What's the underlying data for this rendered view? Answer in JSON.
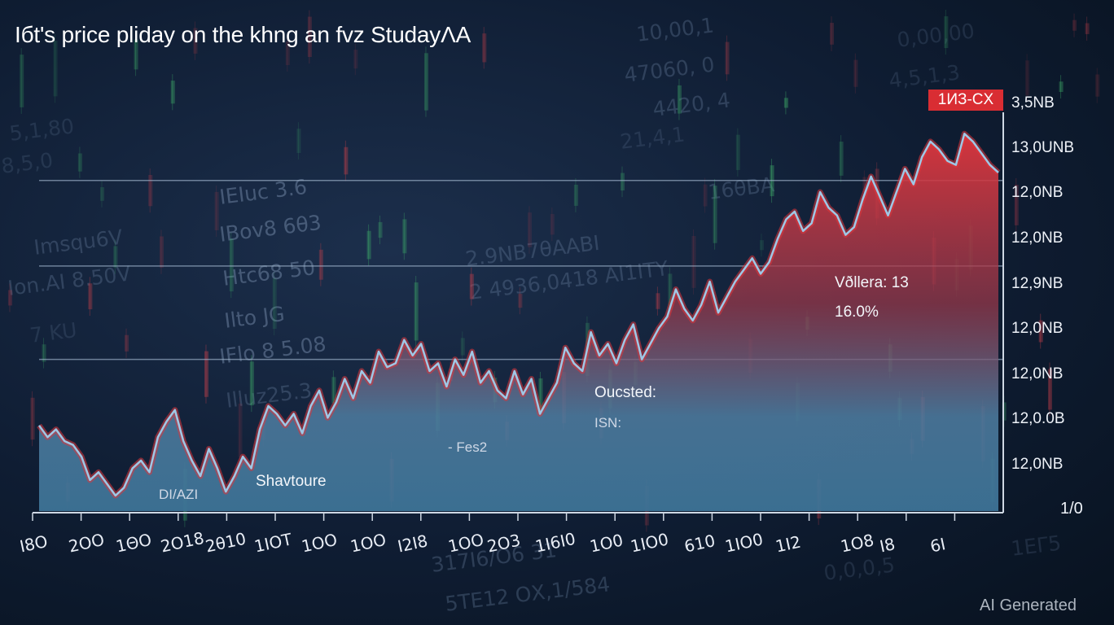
{
  "title": "Iбt's price pliday on the khng an fvz StudayΛA",
  "badge": "1ИЗ-CX",
  "watermark": "AI Generated",
  "background_text": [
    "ΙΕΙuc 3.6",
    "ΙΒov8 6θ3",
    "Ηtc68 50",
    "Ιlto JG",
    "ΙFlo 8 5.08",
    "Ιlluz25.3",
    "10,00,1",
    "47060, 0",
    "4420, 4",
    "16θBA",
    "21,4,1",
    "2.9ΝΒ7θΑΑΒΙ",
    "2 4936,0418 ΑΙ1ΙΤΥ",
    "5,1,80",
    "Ιon.ΑΙ 8.50V",
    "Ιmsqu6V",
    "7 KU",
    "317Ι6/Ο6 31",
    "5ΤΕ12 ΟΧ,1/584",
    "1ΕΓ5",
    "0,00,00",
    "4,5,1,3",
    "8,5,0",
    "0,0,0,5"
  ],
  "y_labels": [
    "3,5ΝΒ",
    "13,0UΝΒ",
    "12,0ΝΒ",
    "12,0ΝΒ",
    "12,9ΝΒ",
    "12,0ΝΒ",
    "12,0ΝΒ",
    "12,0.0Β",
    "12,0ΝΒ"
  ],
  "origin_label": "1/0",
  "x_labels": [
    "Ι8Ο",
    "2ΟΟ",
    "1ΘΟ",
    "2Ο18",
    "2θ10",
    "1ΙΟΤ",
    "1ΟΟ",
    "1ΟΟ",
    "Ι2Ι8",
    "1ΟΟ",
    "2Ο3",
    "1Ι6Ι0",
    "1Ο0",
    "1ΙΟ0",
    "610",
    "1ΙΟ0",
    "1Ι2",
    "1Ο8",
    "Ι8",
    "6Ι"
  ],
  "annotations": {
    "dl": "DΙ/ΑΖΙ",
    "shavtoure": "Shavtoure",
    "fes": "- Fes2",
    "oucsted": "Oucsted:",
    "isn": "ISΝ:",
    "vellera": "Vðllera: 13",
    "pct": "16.0%"
  },
  "colors": {
    "line": "#9fc8e6",
    "area_red": "#e0363d",
    "area_blue": "#5b8fb3",
    "badge": "#d92d33"
  },
  "chart_data": {
    "type": "area",
    "title": "Iбt's price pliday on the khng an fvz StudayΛA",
    "xlabel": "",
    "ylabel": "",
    "ylim": [
      0,
      100
    ],
    "grid": true,
    "gridlines": [
      85,
      63,
      39
    ],
    "values": [
      22,
      19,
      21,
      18,
      17,
      14,
      8,
      10,
      7,
      4,
      6,
      11,
      13,
      10,
      19,
      23,
      26,
      18,
      13,
      9,
      16,
      11,
      5,
      9,
      14,
      11,
      21,
      27,
      25,
      22,
      25,
      20,
      27,
      31,
      24,
      28,
      34,
      29,
      36,
      33,
      41,
      37,
      38,
      44,
      40,
      43,
      36,
      38,
      32,
      39,
      35,
      41,
      33,
      36,
      31,
      29,
      36,
      30,
      34,
      25,
      29,
      33,
      42,
      38,
      36,
      46,
      40,
      43,
      38,
      44,
      48,
      39,
      43,
      47,
      50,
      57,
      52,
      49,
      53,
      59,
      51,
      55,
      59,
      62,
      65,
      61,
      64,
      70,
      75,
      77,
      72,
      74,
      82,
      78,
      76,
      71,
      73,
      80,
      86,
      81,
      76,
      82,
      88,
      84,
      91,
      95,
      93,
      90,
      89,
      97,
      95,
      92,
      89,
      87
    ]
  }
}
